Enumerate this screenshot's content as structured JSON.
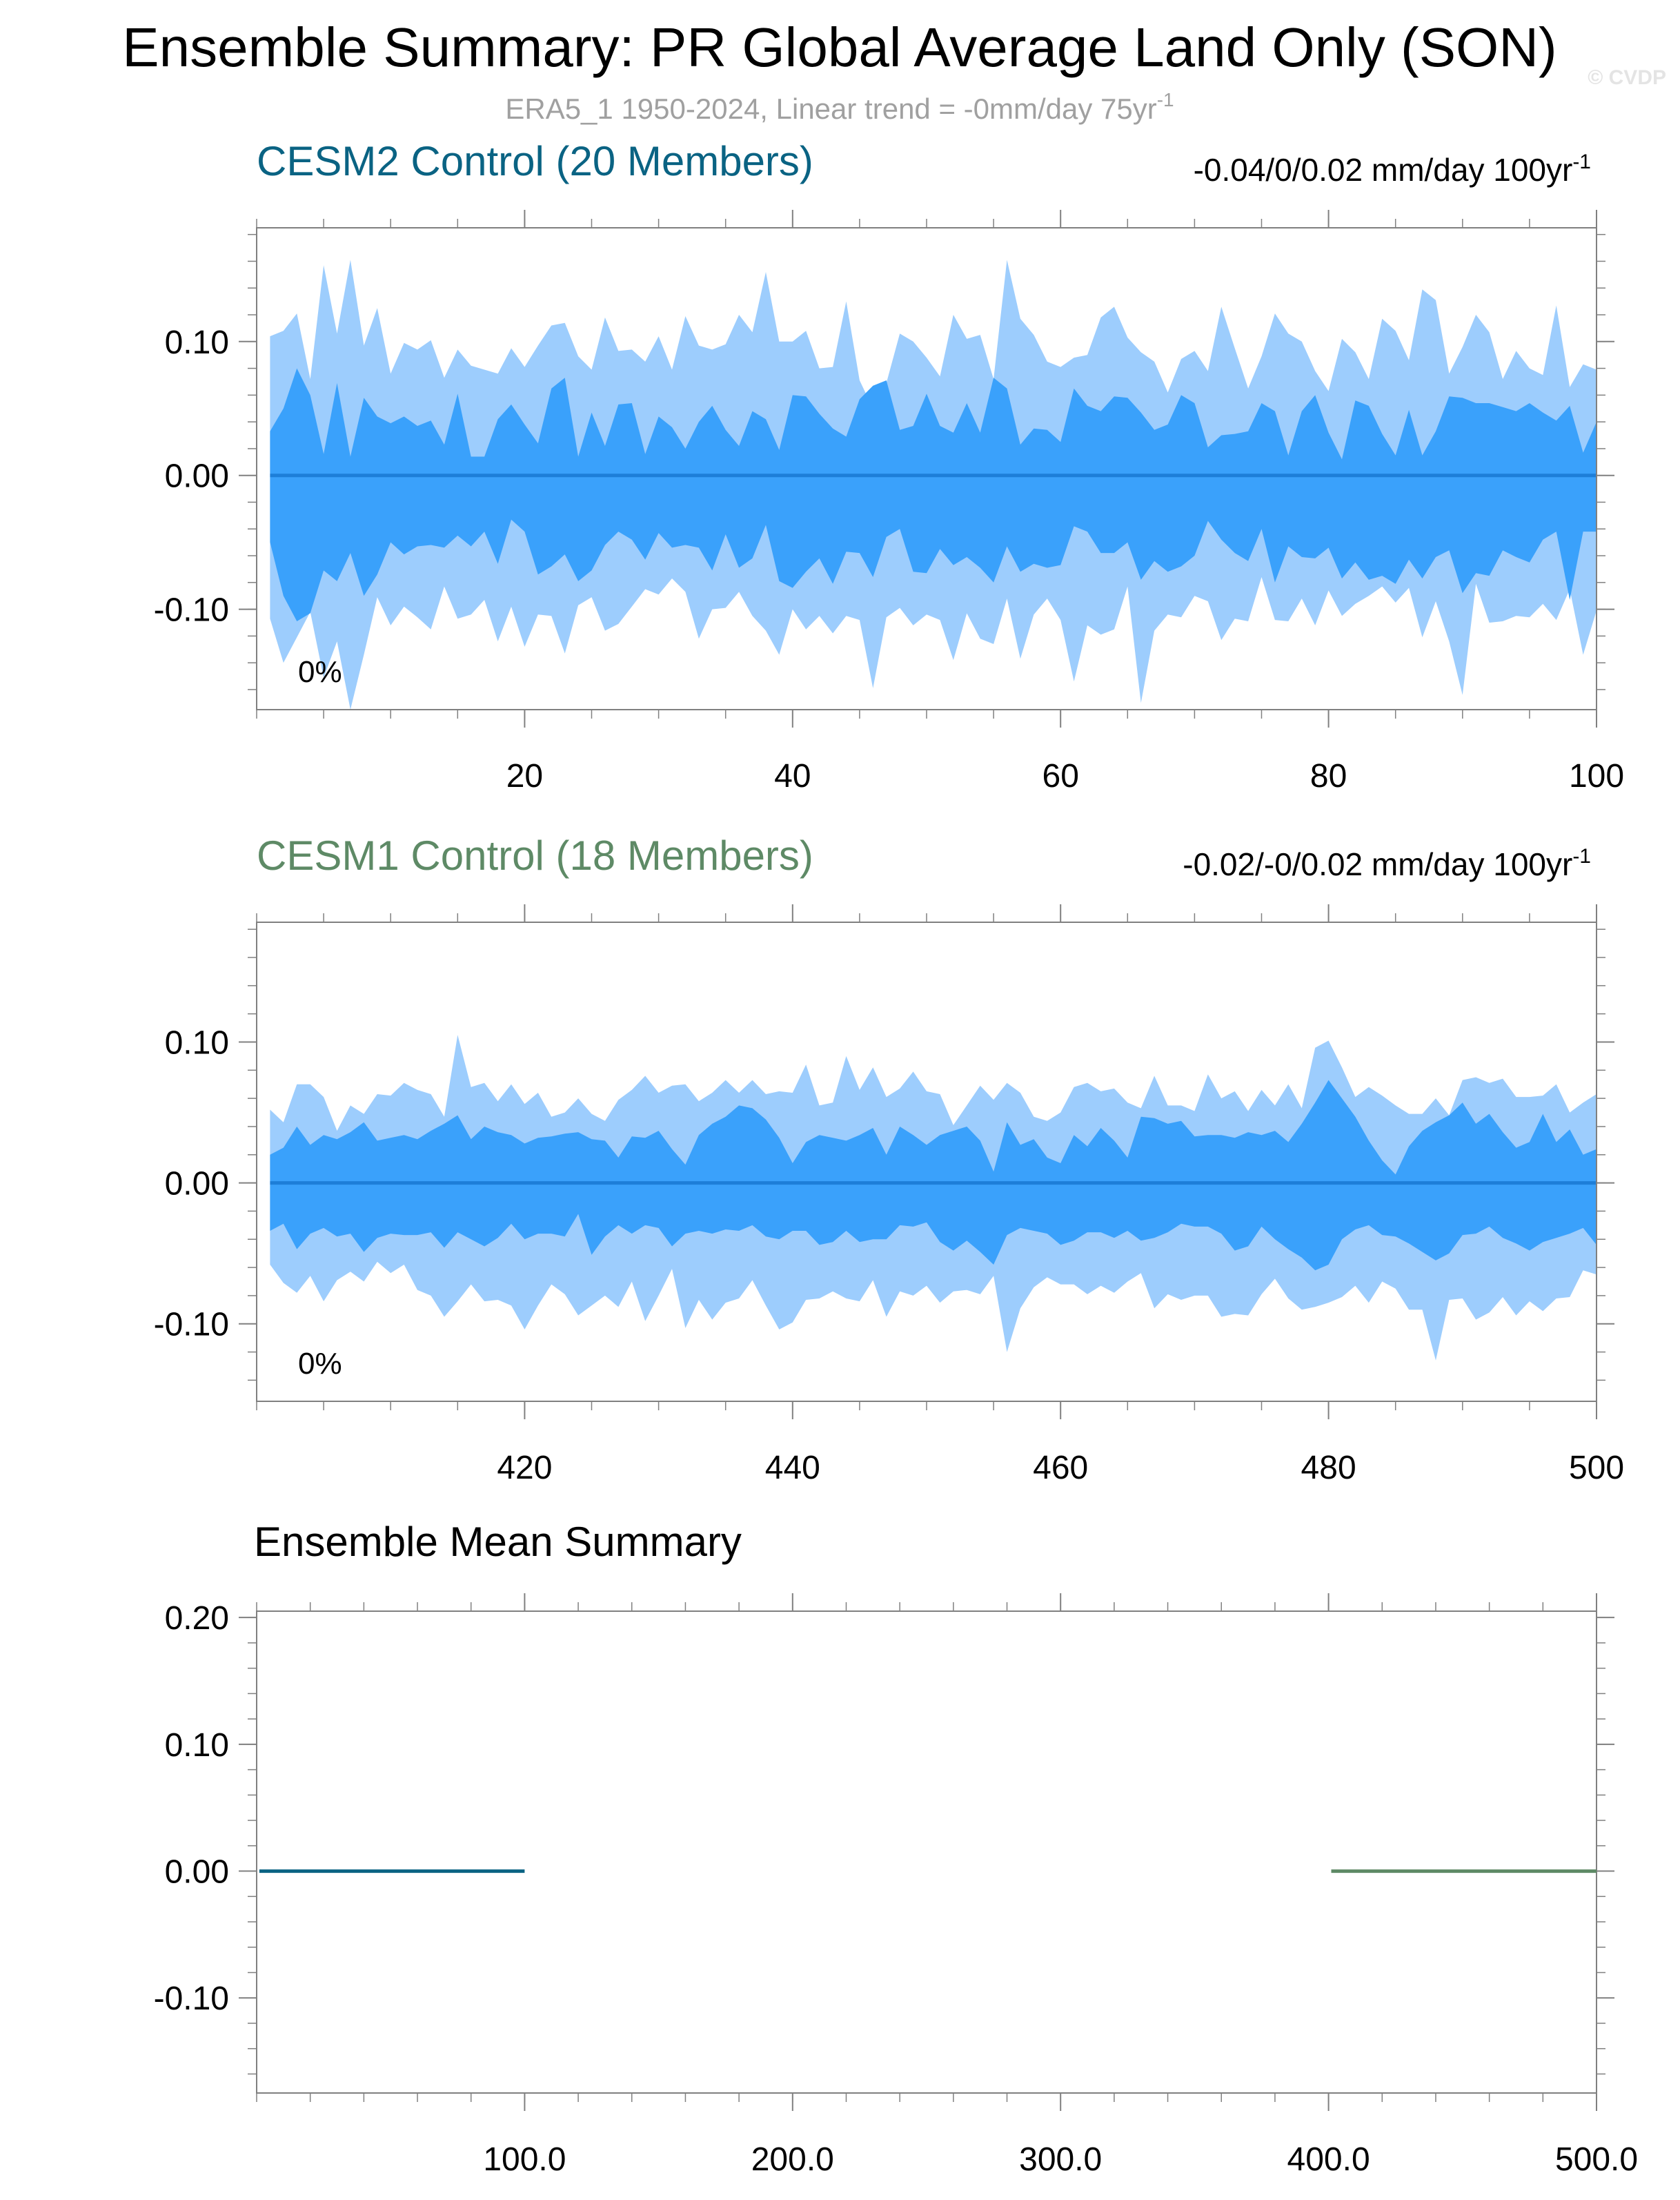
{
  "title": "Ensemble Summary: PR Global Average Land Only (SON)",
  "subtitle": {
    "text": "ERA5_1 1950-2024, Linear trend = -0mm/day 75yr",
    "superscript": "-1",
    "color": "#a0a0a0"
  },
  "watermark": "© CVDP",
  "colors": {
    "outer_band": "#9dcdfd",
    "inner_band": "#3aa1fb",
    "median_line": "#1d7ed8",
    "cesm2": "#0a6383",
    "cesm1": "#5e8a66",
    "axis": "#808080"
  },
  "chart_data": [
    {
      "type": "area",
      "name": "cesm2",
      "title": "CESM2 Control (20 Members)",
      "title_color": "#0a6383",
      "trend_text": "-0.04/0/0.02 mm/day 100yr",
      "trend_superscript": "-1",
      "percent_label": "0%",
      "xlim": [
        0,
        100
      ],
      "ylim": [
        -0.175,
        0.185
      ],
      "x_start": 1,
      "xticks": [
        20,
        40,
        60,
        80,
        100
      ],
      "xtick_labels": [
        "20",
        "40",
        "60",
        "80",
        "100"
      ],
      "yticks": [
        0.1,
        0.0,
        -0.1
      ],
      "ytick_labels": [
        "0.10",
        "0.00",
        "-0.10"
      ],
      "median": 0.0,
      "outer_upper": [
        0.104,
        0.108,
        0.121,
        0.072,
        0.157,
        0.106,
        0.161,
        0.097,
        0.125,
        0.076,
        0.099,
        0.094,
        0.101,
        0.073,
        0.094,
        0.082,
        0.079,
        0.076,
        0.095,
        0.081,
        0.097,
        0.112,
        0.114,
        0.089,
        0.079,
        0.118,
        0.093,
        0.094,
        0.085,
        0.104,
        0.079,
        0.119,
        0.097,
        0.094,
        0.098,
        0.12,
        0.107,
        0.152,
        0.1,
        0.1,
        0.108,
        0.08,
        0.081,
        0.13,
        0.071,
        0.05,
        0.069,
        0.106,
        0.1,
        0.088,
        0.074,
        0.12,
        0.102,
        0.105,
        0.072,
        0.161,
        0.117,
        0.105,
        0.085,
        0.081,
        0.088,
        0.09,
        0.118,
        0.126,
        0.103,
        0.092,
        0.085,
        0.062,
        0.087,
        0.093,
        0.078,
        0.126,
        0.095,
        0.065,
        0.089,
        0.121,
        0.106,
        0.1,
        0.078,
        0.063,
        0.102,
        0.092,
        0.072,
        0.117,
        0.108,
        0.086,
        0.139,
        0.131,
        0.076,
        0.096,
        0.12,
        0.107,
        0.072,
        0.093,
        0.08,
        0.075,
        0.127,
        0.066,
        0.083,
        0.079
      ],
      "inner_upper": [
        0.033,
        0.05,
        0.08,
        0.06,
        0.016,
        0.069,
        0.014,
        0.058,
        0.044,
        0.039,
        0.044,
        0.037,
        0.041,
        0.023,
        0.061,
        0.014,
        0.014,
        0.042,
        0.053,
        0.038,
        0.024,
        0.065,
        0.073,
        0.014,
        0.047,
        0.022,
        0.053,
        0.054,
        0.016,
        0.044,
        0.036,
        0.02,
        0.04,
        0.052,
        0.034,
        0.022,
        0.048,
        0.042,
        0.019,
        0.06,
        0.059,
        0.046,
        0.035,
        0.029,
        0.057,
        0.067,
        0.071,
        0.034,
        0.037,
        0.061,
        0.037,
        0.032,
        0.054,
        0.032,
        0.073,
        0.065,
        0.023,
        0.035,
        0.034,
        0.025,
        0.065,
        0.052,
        0.048,
        0.059,
        0.058,
        0.047,
        0.034,
        0.038,
        0.06,
        0.054,
        0.021,
        0.03,
        0.031,
        0.033,
        0.054,
        0.048,
        0.015,
        0.048,
        0.06,
        0.032,
        0.012,
        0.056,
        0.052,
        0.031,
        0.015,
        0.049,
        0.015,
        0.033,
        0.059,
        0.058,
        0.054,
        0.054,
        0.051,
        0.048,
        0.054,
        0.047,
        0.041,
        0.052,
        0.017,
        0.04
      ],
      "inner_lower": [
        -0.05,
        -0.09,
        -0.109,
        -0.103,
        -0.071,
        -0.079,
        -0.058,
        -0.09,
        -0.074,
        -0.05,
        -0.059,
        -0.053,
        -0.052,
        -0.054,
        -0.045,
        -0.053,
        -0.042,
        -0.066,
        -0.033,
        -0.042,
        -0.074,
        -0.068,
        -0.059,
        -0.079,
        -0.071,
        -0.052,
        -0.042,
        -0.048,
        -0.063,
        -0.043,
        -0.054,
        -0.052,
        -0.054,
        -0.071,
        -0.044,
        -0.069,
        -0.062,
        -0.037,
        -0.079,
        -0.084,
        -0.072,
        -0.062,
        -0.081,
        -0.057,
        -0.058,
        -0.076,
        -0.046,
        -0.04,
        -0.072,
        -0.073,
        -0.055,
        -0.067,
        -0.061,
        -0.069,
        -0.08,
        -0.053,
        -0.072,
        -0.066,
        -0.069,
        -0.067,
        -0.038,
        -0.042,
        -0.058,
        -0.058,
        -0.05,
        -0.078,
        -0.064,
        -0.072,
        -0.068,
        -0.06,
        -0.034,
        -0.048,
        -0.058,
        -0.064,
        -0.04,
        -0.08,
        -0.053,
        -0.061,
        -0.062,
        -0.054,
        -0.077,
        -0.065,
        -0.078,
        -0.075,
        -0.081,
        -0.063,
        -0.077,
        -0.061,
        -0.056,
        -0.088,
        -0.073,
        -0.075,
        -0.056,
        -0.061,
        -0.065,
        -0.048,
        -0.042,
        -0.093,
        -0.042,
        -0.042
      ],
      "outer_lower": [
        -0.107,
        -0.14,
        -0.121,
        -0.102,
        -0.151,
        -0.124,
        -0.175,
        -0.134,
        -0.091,
        -0.112,
        -0.098,
        -0.106,
        -0.115,
        -0.083,
        -0.107,
        -0.104,
        -0.093,
        -0.124,
        -0.098,
        -0.128,
        -0.104,
        -0.105,
        -0.133,
        -0.097,
        -0.091,
        -0.116,
        -0.111,
        -0.098,
        -0.085,
        -0.089,
        -0.077,
        -0.087,
        -0.122,
        -0.1,
        -0.099,
        -0.087,
        -0.105,
        -0.116,
        -0.134,
        -0.1,
        -0.115,
        -0.105,
        -0.118,
        -0.105,
        -0.108,
        -0.159,
        -0.106,
        -0.099,
        -0.112,
        -0.104,
        -0.108,
        -0.138,
        -0.103,
        -0.122,
        -0.126,
        -0.092,
        -0.137,
        -0.104,
        -0.092,
        -0.108,
        -0.154,
        -0.112,
        -0.119,
        -0.115,
        -0.083,
        -0.17,
        -0.116,
        -0.104,
        -0.106,
        -0.09,
        -0.094,
        -0.123,
        -0.107,
        -0.109,
        -0.076,
        -0.108,
        -0.109,
        -0.092,
        -0.112,
        -0.086,
        -0.105,
        -0.096,
        -0.09,
        -0.083,
        -0.095,
        -0.084,
        -0.121,
        -0.094,
        -0.124,
        -0.164,
        -0.081,
        -0.11,
        -0.109,
        -0.105,
        -0.106,
        -0.096,
        -0.108,
        -0.085,
        -0.134,
        -0.101
      ]
    },
    {
      "type": "area",
      "name": "cesm1",
      "title": "CESM1 Control (18 Members)",
      "title_color": "#5e8a66",
      "trend_text": "-0.02/-0/0.02 mm/day 100yr",
      "trend_superscript": "-1",
      "percent_label": "0%",
      "xlim": [
        400,
        500
      ],
      "ylim": [
        -0.155,
        0.185
      ],
      "x_start": 401,
      "xticks": [
        420,
        440,
        460,
        480,
        500
      ],
      "xtick_labels": [
        "420",
        "440",
        "460",
        "480",
        "500"
      ],
      "yticks": [
        0.1,
        0.0,
        -0.1
      ],
      "ytick_labels": [
        "0.10",
        "0.00",
        "-0.10"
      ],
      "median": 0.0,
      "outer_upper": [
        0.052,
        0.043,
        0.07,
        0.07,
        0.061,
        0.037,
        0.055,
        0.049,
        0.063,
        0.062,
        0.071,
        0.066,
        0.063,
        0.047,
        0.105,
        0.068,
        0.071,
        0.058,
        0.07,
        0.056,
        0.064,
        0.047,
        0.05,
        0.06,
        0.049,
        0.044,
        0.059,
        0.066,
        0.076,
        0.064,
        0.069,
        0.07,
        0.058,
        0.064,
        0.073,
        0.064,
        0.073,
        0.063,
        0.065,
        0.064,
        0.084,
        0.055,
        0.057,
        0.09,
        0.066,
        0.082,
        0.061,
        0.067,
        0.079,
        0.065,
        0.063,
        0.041,
        0.055,
        0.069,
        0.059,
        0.071,
        0.064,
        0.047,
        0.044,
        0.05,
        0.068,
        0.071,
        0.065,
        0.067,
        0.057,
        0.053,
        0.076,
        0.055,
        0.055,
        0.051,
        0.077,
        0.06,
        0.065,
        0.051,
        0.066,
        0.055,
        0.07,
        0.053,
        0.096,
        0.101,
        0.082,
        0.061,
        0.068,
        0.062,
        0.055,
        0.049,
        0.049,
        0.06,
        0.048,
        0.073,
        0.075,
        0.071,
        0.074,
        0.061,
        0.061,
        0.062,
        0.07,
        0.05,
        0.057,
        0.063
      ],
      "inner_upper": [
        0.02,
        0.025,
        0.04,
        0.027,
        0.034,
        0.031,
        0.036,
        0.043,
        0.03,
        0.032,
        0.034,
        0.031,
        0.037,
        0.042,
        0.048,
        0.031,
        0.04,
        0.036,
        0.034,
        0.028,
        0.032,
        0.033,
        0.035,
        0.036,
        0.031,
        0.03,
        0.018,
        0.033,
        0.032,
        0.037,
        0.024,
        0.013,
        0.034,
        0.042,
        0.047,
        0.055,
        0.053,
        0.045,
        0.032,
        0.014,
        0.029,
        0.034,
        0.032,
        0.03,
        0.034,
        0.039,
        0.02,
        0.04,
        0.034,
        0.027,
        0.034,
        0.037,
        0.04,
        0.03,
        0.008,
        0.043,
        0.027,
        0.031,
        0.018,
        0.014,
        0.034,
        0.026,
        0.039,
        0.03,
        0.018,
        0.047,
        0.046,
        0.042,
        0.044,
        0.033,
        0.034,
        0.034,
        0.032,
        0.036,
        0.034,
        0.037,
        0.029,
        0.042,
        0.057,
        0.073,
        0.06,
        0.047,
        0.03,
        0.016,
        0.006,
        0.026,
        0.037,
        0.043,
        0.048,
        0.057,
        0.042,
        0.049,
        0.036,
        0.025,
        0.029,
        0.049,
        0.029,
        0.038,
        0.02,
        0.024
      ],
      "inner_lower": [
        -0.034,
        -0.029,
        -0.047,
        -0.036,
        -0.032,
        -0.038,
        -0.036,
        -0.049,
        -0.039,
        -0.036,
        -0.037,
        -0.037,
        -0.035,
        -0.046,
        -0.035,
        -0.04,
        -0.045,
        -0.039,
        -0.029,
        -0.04,
        -0.036,
        -0.036,
        -0.038,
        -0.022,
        -0.051,
        -0.038,
        -0.03,
        -0.036,
        -0.03,
        -0.032,
        -0.045,
        -0.036,
        -0.034,
        -0.036,
        -0.033,
        -0.034,
        -0.03,
        -0.038,
        -0.04,
        -0.034,
        -0.034,
        -0.044,
        -0.042,
        -0.034,
        -0.042,
        -0.04,
        -0.04,
        -0.03,
        -0.031,
        -0.028,
        -0.042,
        -0.048,
        -0.041,
        -0.049,
        -0.058,
        -0.037,
        -0.032,
        -0.034,
        -0.036,
        -0.044,
        -0.041,
        -0.035,
        -0.035,
        -0.039,
        -0.034,
        -0.041,
        -0.039,
        -0.035,
        -0.029,
        -0.031,
        -0.031,
        -0.036,
        -0.048,
        -0.045,
        -0.031,
        -0.04,
        -0.047,
        -0.053,
        -0.062,
        -0.058,
        -0.04,
        -0.033,
        -0.03,
        -0.037,
        -0.038,
        -0.043,
        -0.049,
        -0.055,
        -0.05,
        -0.037,
        -0.036,
        -0.031,
        -0.039,
        -0.043,
        -0.048,
        -0.042,
        -0.039,
        -0.036,
        -0.032,
        -0.044
      ],
      "outer_lower": [
        -0.058,
        -0.071,
        -0.078,
        -0.066,
        -0.084,
        -0.069,
        -0.063,
        -0.07,
        -0.056,
        -0.064,
        -0.058,
        -0.076,
        -0.08,
        -0.095,
        -0.084,
        -0.072,
        -0.084,
        -0.083,
        -0.087,
        -0.104,
        -0.087,
        -0.072,
        -0.079,
        -0.094,
        -0.087,
        -0.08,
        -0.088,
        -0.07,
        -0.098,
        -0.08,
        -0.061,
        -0.103,
        -0.083,
        -0.097,
        -0.085,
        -0.082,
        -0.069,
        -0.087,
        -0.104,
        -0.099,
        -0.083,
        -0.082,
        -0.077,
        -0.082,
        -0.084,
        -0.069,
        -0.095,
        -0.077,
        -0.08,
        -0.073,
        -0.085,
        -0.077,
        -0.076,
        -0.079,
        -0.066,
        -0.12,
        -0.089,
        -0.074,
        -0.067,
        -0.072,
        -0.072,
        -0.079,
        -0.073,
        -0.078,
        -0.07,
        -0.064,
        -0.089,
        -0.079,
        -0.083,
        -0.08,
        -0.08,
        -0.095,
        -0.093,
        -0.094,
        -0.079,
        -0.068,
        -0.082,
        -0.09,
        -0.088,
        -0.085,
        -0.081,
        -0.073,
        -0.085,
        -0.07,
        -0.075,
        -0.09,
        -0.09,
        -0.126,
        -0.083,
        -0.082,
        -0.097,
        -0.092,
        -0.081,
        -0.094,
        -0.084,
        -0.091,
        -0.082,
        -0.081,
        -0.062,
        -0.065
      ]
    },
    {
      "type": "line",
      "name": "mean",
      "title": "Ensemble Mean Summary",
      "xlim": [
        0,
        500
      ],
      "ylim": [
        -0.175,
        0.205
      ],
      "xticks": [
        100,
        200,
        300,
        400,
        500
      ],
      "xtick_labels": [
        "100.0",
        "200.0",
        "300.0",
        "400.0",
        "500.0"
      ],
      "yticks": [
        0.2,
        0.1,
        0.0,
        -0.1
      ],
      "ytick_labels": [
        "0.20",
        "0.10",
        "0.00",
        "-0.10"
      ],
      "series": [
        {
          "x": [
            1,
            100
          ],
          "y": [
            0.0,
            0.0
          ],
          "color": "#0a6383"
        },
        {
          "x": [
            401,
            500
          ],
          "y": [
            0.0,
            0.0
          ],
          "color": "#5e8a66"
        }
      ]
    }
  ]
}
